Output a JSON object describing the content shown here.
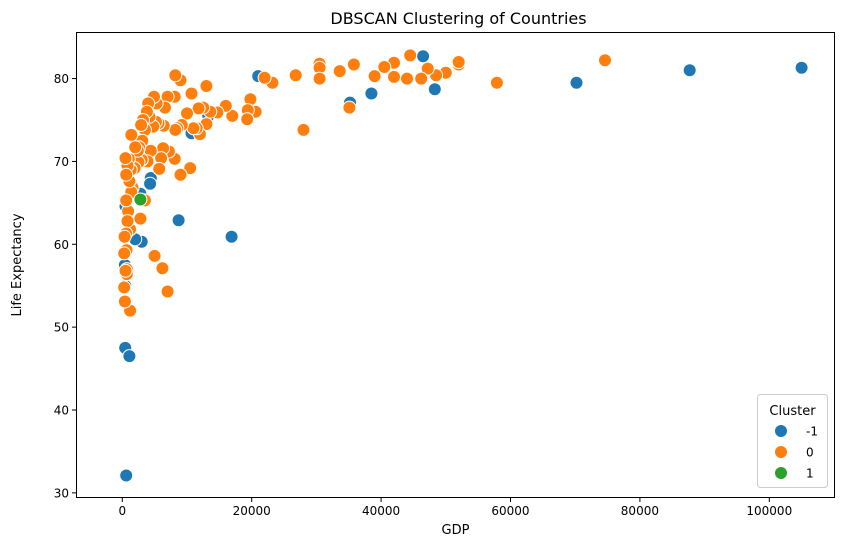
{
  "chart_data": {
    "type": "scatter",
    "title": "DBSCAN Clustering of Countries",
    "xlabel": "GDP",
    "ylabel": "Life Expectancy",
    "xlim": [
      -7000,
      110000
    ],
    "ylim": [
      29.5,
      85.5
    ],
    "xticks": [
      0,
      20000,
      40000,
      60000,
      80000,
      100000
    ],
    "yticks": [
      30,
      40,
      50,
      60,
      70,
      80
    ],
    "grid": false,
    "legend": {
      "title": "Cluster",
      "position": "bottom-right"
    },
    "series": [
      {
        "name": "-1",
        "color": "#1f77b4",
        "points": [
          [
            105000,
            81.3
          ],
          [
            87700,
            81.0
          ],
          [
            70200,
            79.5
          ],
          [
            48300,
            78.7
          ],
          [
            46500,
            82.7
          ],
          [
            38500,
            78.2
          ],
          [
            35200,
            77.1
          ],
          [
            21000,
            80.3
          ],
          [
            16900,
            60.9
          ],
          [
            13300,
            75.5
          ],
          [
            10700,
            73.4
          ],
          [
            8700,
            62.9
          ],
          [
            4400,
            68.0
          ],
          [
            4300,
            67.3
          ],
          [
            3600,
            71.2
          ],
          [
            3000,
            60.3
          ],
          [
            2800,
            66.1
          ],
          [
            2000,
            60.6
          ],
          [
            500,
            64.6
          ],
          [
            400,
            57.5
          ],
          [
            450,
            55.0
          ],
          [
            450,
            47.5
          ],
          [
            1100,
            46.5
          ],
          [
            600,
            32.1
          ]
        ]
      },
      {
        "name": "0",
        "color": "#ff7f0e",
        "points": [
          [
            74600,
            82.2
          ],
          [
            57900,
            79.5
          ],
          [
            52000,
            81.7
          ],
          [
            52000,
            82.0
          ],
          [
            50000,
            80.7
          ],
          [
            48500,
            80.4
          ],
          [
            47200,
            81.2
          ],
          [
            46200,
            80.0
          ],
          [
            44500,
            82.8
          ],
          [
            44000,
            80.0
          ],
          [
            42000,
            80.2
          ],
          [
            42000,
            81.9
          ],
          [
            40500,
            81.4
          ],
          [
            39000,
            80.3
          ],
          [
            35800,
            81.7
          ],
          [
            35100,
            76.5
          ],
          [
            33600,
            80.9
          ],
          [
            30500,
            81.8
          ],
          [
            30500,
            81.3
          ],
          [
            30500,
            80.0
          ],
          [
            28000,
            73.8
          ],
          [
            26800,
            80.4
          ],
          [
            23200,
            79.5
          ],
          [
            22000,
            80.1
          ],
          [
            20600,
            76.0
          ],
          [
            19800,
            77.5
          ],
          [
            19400,
            76.2
          ],
          [
            19300,
            75.1
          ],
          [
            17000,
            75.5
          ],
          [
            16000,
            76.7
          ],
          [
            14700,
            75.9
          ],
          [
            13600,
            76.0
          ],
          [
            13000,
            74.5
          ],
          [
            13000,
            79.1
          ],
          [
            12500,
            76.5
          ],
          [
            12000,
            73.3
          ],
          [
            11800,
            76.4
          ],
          [
            11500,
            74.0
          ],
          [
            11000,
            74.0
          ],
          [
            10700,
            78.2
          ],
          [
            10500,
            69.2
          ],
          [
            10000,
            75.8
          ],
          [
            9200,
            74.4
          ],
          [
            9000,
            79.8
          ],
          [
            9000,
            68.4
          ],
          [
            8500,
            74.0
          ],
          [
            8200,
            80.4
          ],
          [
            8200,
            73.8
          ],
          [
            8100,
            77.8
          ],
          [
            8100,
            70.3
          ],
          [
            7200,
            71.2
          ],
          [
            7000,
            77.8
          ],
          [
            7000,
            54.3
          ],
          [
            6600,
            76.5
          ],
          [
            6400,
            74.3
          ],
          [
            6300,
            71.6
          ],
          [
            6200,
            57.1
          ],
          [
            6000,
            70.4
          ],
          [
            5700,
            69.1
          ],
          [
            5600,
            74.6
          ],
          [
            5300,
            77.0
          ],
          [
            5200,
            74.8
          ],
          [
            5000,
            58.6
          ],
          [
            4900,
            77.8
          ],
          [
            4800,
            74.2
          ],
          [
            4400,
            71.3
          ],
          [
            4200,
            75.4
          ],
          [
            4000,
            77.0
          ],
          [
            3900,
            70.0
          ],
          [
            3800,
            76.0
          ],
          [
            3500,
            73.8
          ],
          [
            3500,
            65.3
          ],
          [
            3200,
            75.0
          ],
          [
            3100,
            72.5
          ],
          [
            3000,
            70.2
          ],
          [
            2900,
            74.4
          ],
          [
            2800,
            63.1
          ],
          [
            2600,
            71.7
          ],
          [
            2500,
            69.9
          ],
          [
            2400,
            71.3
          ],
          [
            2000,
            71.7
          ],
          [
            1900,
            69.2
          ],
          [
            1600,
            66.8
          ],
          [
            1400,
            73.2
          ],
          [
            1400,
            66.3
          ],
          [
            1300,
            69.0
          ],
          [
            1200,
            61.8
          ],
          [
            1200,
            52.0
          ],
          [
            1100,
            67.6
          ],
          [
            1000,
            70.3
          ],
          [
            900,
            64.0
          ],
          [
            800,
            69.5
          ],
          [
            800,
            62.8
          ],
          [
            700,
            57.0
          ],
          [
            700,
            56.4
          ],
          [
            650,
            59.3
          ],
          [
            600,
            68.4
          ],
          [
            600,
            65.3
          ],
          [
            600,
            61.3
          ],
          [
            500,
            70.4
          ],
          [
            500,
            56.8
          ],
          [
            400,
            53.1
          ],
          [
            350,
            60.9
          ],
          [
            300,
            58.9
          ],
          [
            300,
            54.8
          ]
        ]
      },
      {
        "name": "1",
        "color": "#2ca02c",
        "points": [
          [
            2800,
            65.4
          ]
        ]
      }
    ]
  }
}
